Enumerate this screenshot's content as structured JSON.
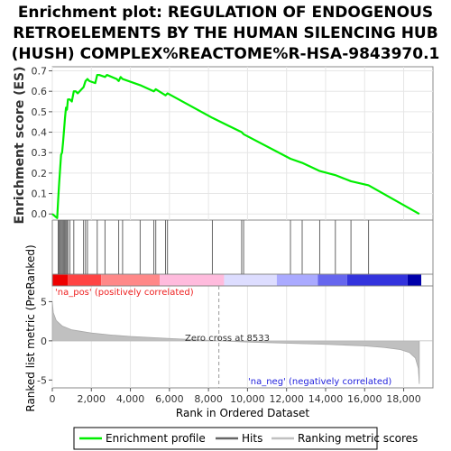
{
  "chart_data": {
    "type": "line",
    "title_lines": [
      "Enrichment plot: REGULATION OF ENDOGENOUS",
      "RETROELEMENTS BY THE HUMAN SILENCING HUB",
      "(HUSH) COMPLEX%REACTOME%R-HSA-9843970.1"
    ],
    "xlabel": "Rank in Ordered Dataset",
    "ylabel_top": "Enrichment score (ES)",
    "ylabel_bottom": "Ranked list metric (PreRanked)",
    "xlim": [
      0,
      19500
    ],
    "x_ticks": [
      0,
      2000,
      4000,
      6000,
      8000,
      10000,
      12000,
      14000,
      16000,
      18000
    ],
    "x_tick_labels": [
      "0",
      "2,000",
      "4,000",
      "6,000",
      "8,000",
      "10,000",
      "12,000",
      "14,000",
      "16,000",
      "18,000"
    ],
    "es_ylim": [
      -0.03,
      0.72
    ],
    "es_ticks": [
      0.0,
      0.1,
      0.2,
      0.3,
      0.4,
      0.5,
      0.6,
      0.7
    ],
    "es_tick_labels": [
      "0.0",
      "0.1",
      "0.2",
      "0.3",
      "0.4",
      "0.5",
      "0.6",
      "0.7"
    ],
    "metric_ylim": [
      -6,
      8.5
    ],
    "metric_ticks": [
      -5,
      0,
      5
    ],
    "metric_tick_labels": [
      "-5",
      "0",
      "5"
    ],
    "series": [
      {
        "name": "Enrichment profile",
        "color": "#00ee00",
        "x": [
          0,
          250,
          300,
          350,
          400,
          450,
          500,
          550,
          600,
          650,
          700,
          750,
          800,
          900,
          1000,
          1100,
          1200,
          1300,
          1600,
          1700,
          1800,
          1900,
          2200,
          2300,
          2400,
          2700,
          2800,
          3300,
          3400,
          3500,
          3600,
          4500,
          5200,
          5300,
          5800,
          5900,
          8200,
          9700,
          9800,
          12200,
          12800,
          13700,
          14500,
          15300,
          16200,
          18800
        ],
        "y": [
          0.0,
          -0.02,
          0.07,
          0.15,
          0.22,
          0.29,
          0.3,
          0.35,
          0.41,
          0.47,
          0.52,
          0.51,
          0.56,
          0.56,
          0.55,
          0.6,
          0.6,
          0.59,
          0.62,
          0.65,
          0.66,
          0.65,
          0.64,
          0.68,
          0.68,
          0.67,
          0.68,
          0.66,
          0.65,
          0.67,
          0.66,
          0.63,
          0.6,
          0.61,
          0.58,
          0.59,
          0.47,
          0.4,
          0.39,
          0.27,
          0.25,
          0.21,
          0.19,
          0.16,
          0.14,
          0.0
        ]
      }
    ],
    "hits": [
      300,
      350,
      400,
      450,
      500,
      550,
      600,
      650,
      700,
      750,
      800,
      900,
      1100,
      1600,
      1700,
      1800,
      2300,
      2700,
      3400,
      3600,
      4500,
      5200,
      5300,
      5800,
      5900,
      8200,
      9700,
      9800,
      12200,
      12800,
      13700,
      14500,
      15300,
      16200
    ],
    "hits_label": "Hits",
    "ranking_label": "Ranking metric scores",
    "metric_curve": {
      "x": [
        0,
        50,
        200,
        500,
        1000,
        2000,
        3000,
        4000,
        6000,
        8533,
        10000,
        12000,
        14000,
        16000,
        17000,
        17800,
        18300,
        18600,
        18750,
        18800
      ],
      "y": [
        5.0,
        3.6,
        2.6,
        1.9,
        1.4,
        1.0,
        0.75,
        0.55,
        0.3,
        0.0,
        -0.15,
        -0.3,
        -0.45,
        -0.65,
        -0.85,
        -1.1,
        -1.5,
        -2.2,
        -3.5,
        -5.5
      ]
    },
    "zero_cross": 8533,
    "zero_cross_label": "Zero cross at 8533",
    "pos_label": "'na_pos' (positively correlated)",
    "neg_label": "'na_neg' (negatively correlated)",
    "heatmap_colors": [
      "#ee0000",
      "#ff4444",
      "#ff8888",
      "#ffbbdd",
      "#ddddff",
      "#aaaaff",
      "#6666ee",
      "#3333dd",
      "#0000aa"
    ],
    "heatmap_stops": [
      0,
      800,
      2500,
      5500,
      8800,
      11500,
      13600,
      15100,
      18200,
      18900
    ],
    "legend_line_color": "#00ee00",
    "hit_color": "#666666",
    "ranking_color": "#c0c0c0"
  }
}
